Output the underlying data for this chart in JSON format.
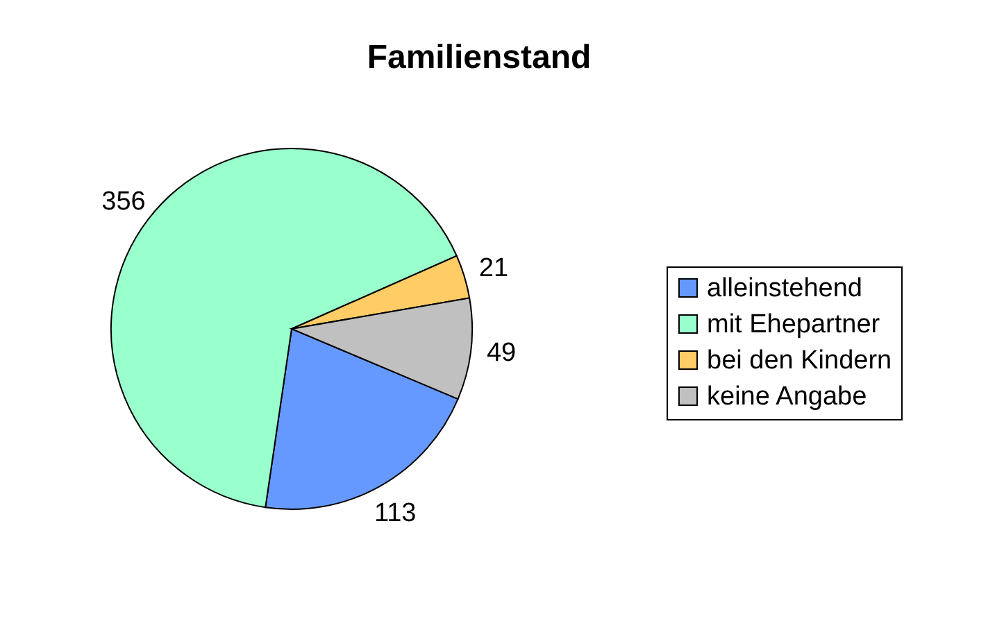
{
  "chart_data": {
    "type": "pie",
    "title": "Familienstand",
    "categories": [
      "alleinstehend",
      "mit Ehepartner",
      "bei den Kindern",
      "keine Angabe"
    ],
    "values": [
      113,
      356,
      21,
      49
    ],
    "colors": [
      "#6699ff",
      "#99ffcc",
      "#ffcc66",
      "#c0c0c0"
    ],
    "data_labels": true,
    "legend": "right"
  }
}
